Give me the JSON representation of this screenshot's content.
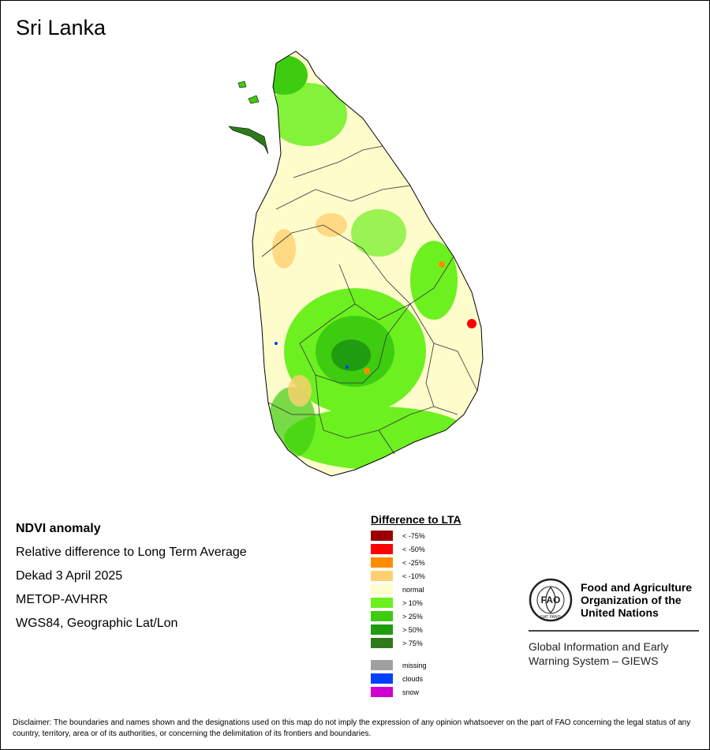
{
  "title": "Sri Lanka",
  "info": {
    "line1": "NDVI anomaly",
    "line2": "Relative difference to Long Term Average",
    "line3": "Dekad 3 April 2025",
    "line4": "METOP-AVHRR",
    "line5": "WGS84, Geographic Lat/Lon"
  },
  "legend": {
    "title": "Difference to LTA",
    "classes": [
      {
        "label": "< -75%",
        "color": "#9b0000"
      },
      {
        "label": "< -50%",
        "color": "#ff0000"
      },
      {
        "label": "< -25%",
        "color": "#ff8c00"
      },
      {
        "label": "< -10%",
        "color": "#ffd070"
      },
      {
        "label": "normal",
        "color": "#fffccc"
      },
      {
        "label": "> 10%",
        "color": "#6cf020"
      },
      {
        "label": "> 25%",
        "color": "#3ecc10"
      },
      {
        "label": "> 50%",
        "color": "#1f9c10"
      },
      {
        "label": "> 75%",
        "color": "#2e7a1a"
      }
    ],
    "extra": [
      {
        "label": "missing",
        "color": "#a0a0a0"
      },
      {
        "label": "clouds",
        "color": "#0040ff"
      },
      {
        "label": "snow",
        "color": "#d000d0"
      }
    ]
  },
  "fao": {
    "name_line1": "Food and Agriculture",
    "name_line2": "Organization of the",
    "name_line3": "United Nations",
    "logo_text": "FAO",
    "logo_motto": "FIAT PANIS",
    "giews_line1": "Global Information and Early",
    "giews_line2": "Warning System – GIEWS"
  },
  "disclaimer": "Disclaimer: The boundaries and names shown and the designations used on this map do not imply the expression of any opinion whatsoever on the part of FAO concerning the legal status of any country, territory, area or of its authorities, or concerning the delimitation of its frontiers and boundaries."
}
